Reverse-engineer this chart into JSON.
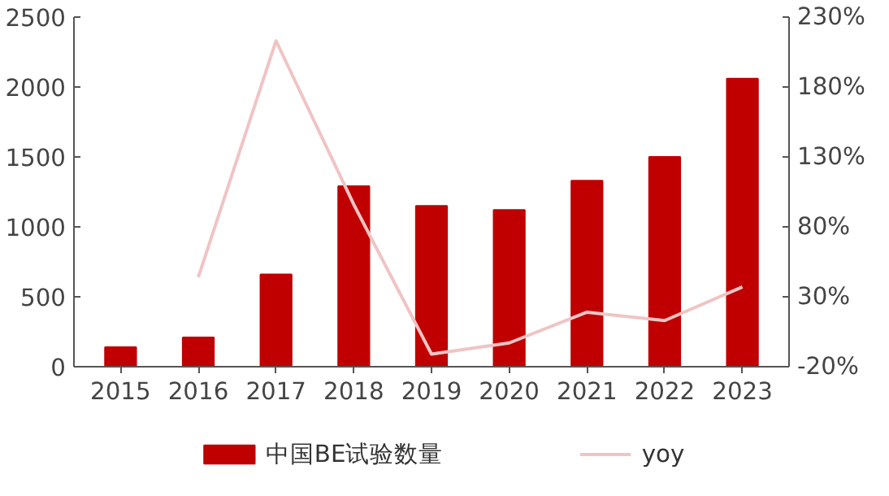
{
  "chart_data": {
    "type": "bar",
    "categories": [
      "2015",
      "2016",
      "2017",
      "2018",
      "2019",
      "2020",
      "2021",
      "2022",
      "2023"
    ],
    "series": [
      {
        "name": "中国BE试验数量",
        "color": "#c00000",
        "values": [
          140,
          210,
          660,
          1290,
          1150,
          1120,
          1330,
          1500,
          2060
        ]
      },
      {
        "name": "yoy",
        "type": "line",
        "axis": "y2",
        "color": "#f0c4c4",
        "values": [
          null,
          44,
          213,
          96,
          -11,
          -3,
          19,
          13,
          37
        ]
      }
    ],
    "ylim": [
      0,
      2500
    ],
    "yticks": [
      0,
      500,
      1000,
      1500,
      2000,
      2500
    ],
    "y2lim": [
      -20,
      230
    ],
    "y2ticks": [
      {
        "value": -20,
        "label": "-20%"
      },
      {
        "value": 30,
        "label": "30%"
      },
      {
        "value": 80,
        "label": "80%"
      },
      {
        "value": 130,
        "label": "130%"
      },
      {
        "value": 180,
        "label": "180%"
      },
      {
        "value": 230,
        "label": "230%"
      }
    ],
    "grid": false,
    "legend": "bottom"
  }
}
